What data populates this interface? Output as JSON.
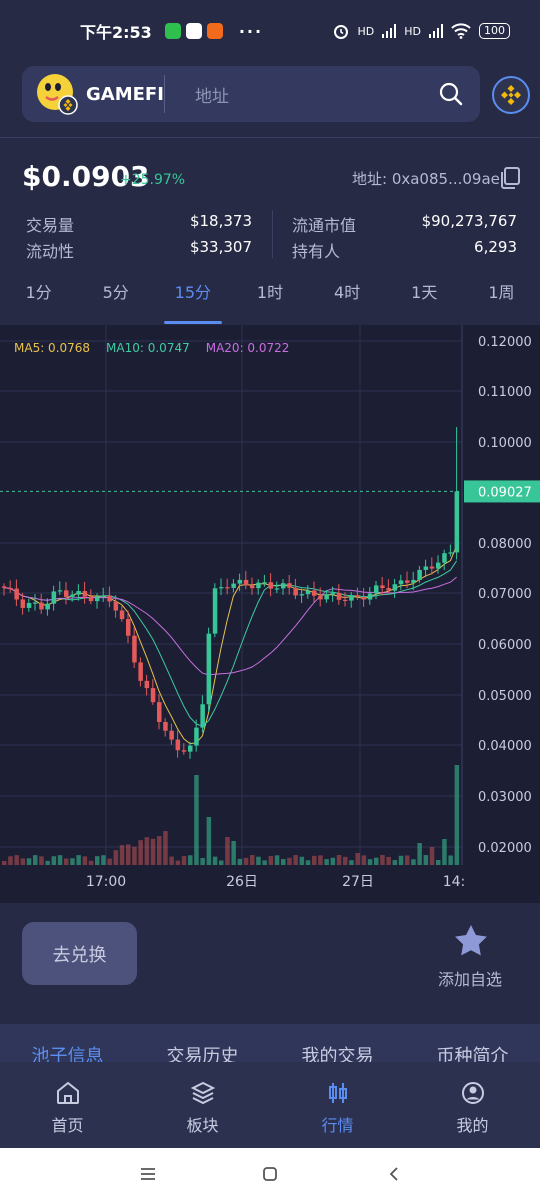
{
  "status_bar": {
    "time": "下午2:53",
    "battery": "100",
    "network_1": "HD",
    "network_2": "HD"
  },
  "header": {
    "token_name": "GAMEFI",
    "search_placeholder": "地址"
  },
  "price": {
    "value": "$0.0903",
    "change": "+25.97%",
    "address": "地址: 0xa085...09ae"
  },
  "stats": {
    "volume_label": "交易量",
    "volume": "$18,373",
    "liquidity_label": "流动性",
    "liquidity": "$33,307",
    "market_cap_label": "流通市值",
    "market_cap": "$90,273,767",
    "holders_label": "持有人",
    "holders": "6,293"
  },
  "timeframes": [
    "1分",
    "5分",
    "15分",
    "1时",
    "4时",
    "1天",
    "1周"
  ],
  "active_timeframe": 2,
  "ma_legend": {
    "ma5": "MA5: 0.0768",
    "ma10": "MA10: 0.0747",
    "ma20": "MA20: 0.0722"
  },
  "colors": {
    "up": "#38c598",
    "down": "#e45a5a",
    "accent": "#5b8df0",
    "ma5": "#e8c14a",
    "ma10": "#3fcba0",
    "ma20": "#c86ee0"
  },
  "chart_data": {
    "type": "candlestick",
    "y_ticks": [
      "0.12000",
      "0.11000",
      "0.10000",
      "0.08000",
      "0.07000",
      "0.06000",
      "0.05000",
      "0.04000",
      "0.03000",
      "0.02000"
    ],
    "current_price_label": "0.09027",
    "current_price": 0.09027,
    "x_ticks": [
      "17:00",
      "26日",
      "27日",
      "14:"
    ],
    "ylim": [
      0.02,
      0.12
    ]
  },
  "actions": {
    "swap_label": "去兑换",
    "favorite_label": "添加自选"
  },
  "section_tabs": [
    "池子信息",
    "交易历史",
    "我的交易",
    "币种简介"
  ],
  "nav": [
    {
      "label": "首页",
      "icon": "home-icon"
    },
    {
      "label": "板块",
      "icon": "layers-icon"
    },
    {
      "label": "行情",
      "icon": "chart-icon"
    },
    {
      "label": "我的",
      "icon": "user-icon"
    }
  ]
}
